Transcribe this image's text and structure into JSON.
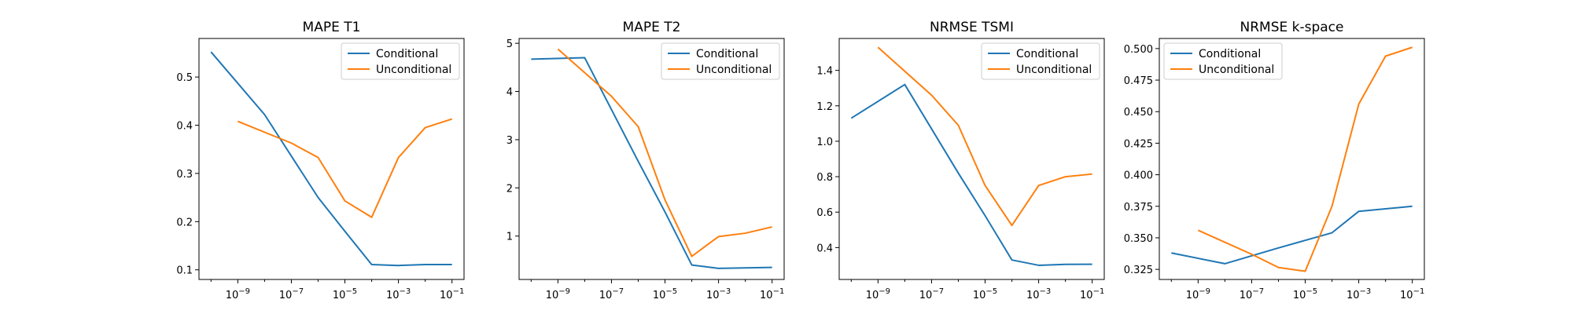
{
  "chart_data": [
    {
      "type": "line",
      "title": "MAPE T1",
      "xscale": "log",
      "xlim": [
        1e-10,
        0.1
      ],
      "ylim": [
        0.08,
        0.58
      ],
      "x_ticks": [
        1e-09,
        1e-07,
        1e-05,
        0.001,
        0.1
      ],
      "x_tick_labels": [
        "10^-9",
        "10^-7",
        "10^-5",
        "10^-3",
        "10^-1"
      ],
      "y_ticks": [
        0.1,
        0.2,
        0.3,
        0.4,
        0.5
      ],
      "y_tick_labels": [
        "0.1",
        "0.2",
        "0.3",
        "0.4",
        "0.5"
      ],
      "legend_position": "top-right",
      "series": [
        {
          "name": "Conditional",
          "color": "#1f77b4",
          "x": [
            1e-10,
            1e-08,
            1e-06,
            1e-05,
            0.0001,
            0.001,
            0.01,
            0.1
          ],
          "y": [
            0.552,
            0.422,
            0.25,
            0.18,
            0.111,
            0.109,
            0.111,
            0.111
          ]
        },
        {
          "name": "Unconditional",
          "color": "#ff7f0e",
          "x": [
            1e-09,
            1e-07,
            1e-06,
            1e-05,
            0.0001,
            0.001,
            0.01,
            0.1
          ],
          "y": [
            0.408,
            0.363,
            0.333,
            0.243,
            0.209,
            0.333,
            0.395,
            0.413
          ]
        }
      ]
    },
    {
      "type": "line",
      "title": "MAPE T2",
      "xscale": "log",
      "xlim": [
        1e-10,
        0.1
      ],
      "ylim": [
        0.1,
        5.1
      ],
      "x_ticks": [
        1e-09,
        1e-07,
        1e-05,
        0.001,
        0.1
      ],
      "x_tick_labels": [
        "10^-9",
        "10^-7",
        "10^-5",
        "10^-3",
        "10^-1"
      ],
      "y_ticks": [
        1,
        2,
        3,
        4,
        5
      ],
      "y_tick_labels": [
        "1",
        "2",
        "3",
        "4",
        "5"
      ],
      "legend_position": "top-right",
      "series": [
        {
          "name": "Conditional",
          "color": "#1f77b4",
          "x": [
            1e-10,
            1e-08,
            1e-06,
            1e-05,
            0.0001,
            0.001,
            0.01,
            0.1
          ],
          "y": [
            4.67,
            4.7,
            2.55,
            1.5,
            0.4,
            0.33,
            0.34,
            0.35
          ]
        },
        {
          "name": "Unconditional",
          "color": "#ff7f0e",
          "x": [
            1e-09,
            1e-07,
            1e-06,
            1e-05,
            0.0001,
            0.001,
            0.01,
            0.1
          ],
          "y": [
            4.88,
            3.9,
            3.27,
            1.75,
            0.58,
            0.99,
            1.06,
            1.19
          ]
        }
      ]
    },
    {
      "type": "line",
      "title": "NRMSE TSMI",
      "xscale": "log",
      "xlim": [
        1e-10,
        0.1
      ],
      "ylim": [
        0.22,
        1.58
      ],
      "x_ticks": [
        1e-09,
        1e-07,
        1e-05,
        0.001,
        0.1
      ],
      "x_tick_labels": [
        "10^-9",
        "10^-7",
        "10^-5",
        "10^-3",
        "10^-1"
      ],
      "y_ticks": [
        0.4,
        0.6,
        0.8,
        1.0,
        1.2,
        1.4
      ],
      "y_tick_labels": [
        "0.4",
        "0.6",
        "0.8",
        "1.0",
        "1.2",
        "1.4"
      ],
      "legend_position": "top-right",
      "series": [
        {
          "name": "Conditional",
          "color": "#1f77b4",
          "x": [
            1e-10,
            1e-08,
            1e-06,
            1e-05,
            0.0001,
            0.001,
            0.01,
            0.1
          ],
          "y": [
            1.13,
            1.32,
            0.82,
            0.58,
            0.33,
            0.3,
            0.305,
            0.306
          ]
        },
        {
          "name": "Unconditional",
          "color": "#ff7f0e",
          "x": [
            1e-09,
            1e-07,
            1e-06,
            1e-05,
            0.0001,
            0.001,
            0.01,
            0.1
          ],
          "y": [
            1.53,
            1.26,
            1.09,
            0.75,
            0.525,
            0.75,
            0.8,
            0.815
          ]
        }
      ]
    },
    {
      "type": "line",
      "title": "NRMSE k-space",
      "xscale": "log",
      "xlim": [
        1e-10,
        0.1
      ],
      "ylim": [
        0.317,
        0.508
      ],
      "x_ticks": [
        1e-09,
        1e-07,
        1e-05,
        0.001,
        0.1
      ],
      "x_tick_labels": [
        "10^-9",
        "10^-7",
        "10^-5",
        "10^-3",
        "10^-1"
      ],
      "y_ticks": [
        0.325,
        0.35,
        0.375,
        0.4,
        0.425,
        0.45,
        0.475,
        0.5
      ],
      "y_tick_labels": [
        "0.325",
        "0.350",
        "0.375",
        "0.400",
        "0.425",
        "0.450",
        "0.475",
        "0.500"
      ],
      "legend_position": "top-left",
      "series": [
        {
          "name": "Conditional",
          "color": "#1f77b4",
          "x": [
            1e-10,
            1e-08,
            1e-06,
            1e-05,
            0.0001,
            0.001,
            0.01,
            0.1
          ],
          "y": [
            0.338,
            0.3295,
            0.342,
            0.348,
            0.354,
            0.371,
            0.373,
            0.375
          ]
        },
        {
          "name": "Unconditional",
          "color": "#ff7f0e",
          "x": [
            1e-09,
            1e-07,
            1e-06,
            1e-05,
            0.0001,
            0.001,
            0.01,
            0.1
          ],
          "y": [
            0.356,
            0.337,
            0.3265,
            0.3235,
            0.375,
            0.456,
            0.494,
            0.501
          ]
        }
      ]
    }
  ]
}
